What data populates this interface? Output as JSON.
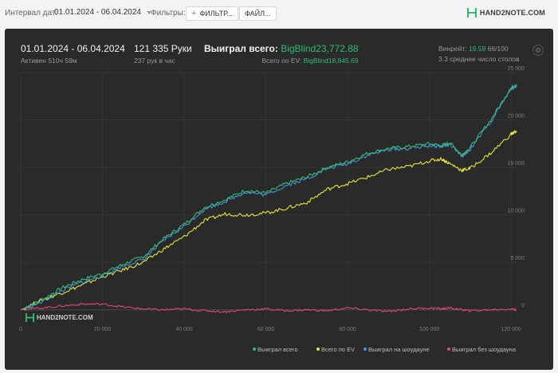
{
  "toolbar": {
    "date_label": "Интервал дат:",
    "date_value": "01.01.2024 - 06.04.2024",
    "filters_label": "Фильтры:",
    "filter_button": "ФИЛЬТР...",
    "file_button": "ФАЙЛ...",
    "logo_text": "HAND2NOTE.COM"
  },
  "stats": {
    "date_range": "01.01.2024 - 06.04.2024",
    "active": "Активен 510ч 59м",
    "hands": "121 335 Руки",
    "hands_per_hour": "237 рук в час",
    "won_label": "Выиграл всего:",
    "won_value": "BigBlind23,772.88",
    "ev_label": "Всего по EV:",
    "ev_value": "BigBlind18,845.69",
    "winrate_label": "Винрейт:",
    "winrate_value": "19.59",
    "winrate_suffix": "66/100",
    "tables": "3.3 среднее число столов"
  },
  "watermark": "HAND2NOTE.COM",
  "colors": {
    "won": "#2fbd73",
    "ev": "#e3e73c",
    "showdown": "#4a8fd9",
    "nonshowdown": "#e0467c",
    "accent": "#2fbd73"
  },
  "chart_data": {
    "type": "line",
    "xlabel": "",
    "ylabel": "",
    "xlim": [
      0,
      121335
    ],
    "ylim": [
      -1200,
      25000
    ],
    "x_ticks": [
      "0",
      "20 000",
      "40 000",
      "60 000",
      "80 000",
      "100 000",
      "120 000"
    ],
    "x_tick_values": [
      0,
      20000,
      40000,
      60000,
      80000,
      100000,
      120000
    ],
    "y_ticks": [
      "0",
      "5 000",
      "10 000",
      "15 000",
      "20 000",
      "25 000"
    ],
    "y_tick_values": [
      0,
      5000,
      10000,
      15000,
      20000,
      25000
    ],
    "grid": true,
    "legend_position": "bottom-right",
    "x": [
      0,
      5000,
      10000,
      15000,
      20000,
      25000,
      30000,
      35000,
      40000,
      45000,
      50000,
      55000,
      60000,
      65000,
      70000,
      75000,
      80000,
      85000,
      90000,
      95000,
      100000,
      103000,
      105000,
      108000,
      110000,
      115000,
      120000,
      121335
    ],
    "series": [
      {
        "name": "Выиграл всего",
        "values": [
          0,
          1000,
          2300,
          3200,
          3800,
          4800,
          5600,
          7500,
          9000,
          10800,
          11600,
          12600,
          12300,
          13300,
          14000,
          15000,
          15600,
          16500,
          17000,
          17200,
          17500,
          17300,
          17600,
          16300,
          17100,
          20000,
          23400,
          23773
        ]
      },
      {
        "name": "Всего по EV",
        "values": [
          0,
          1000,
          1800,
          2600,
          3500,
          4200,
          5000,
          6400,
          7700,
          9400,
          10100,
          10000,
          10200,
          10700,
          11300,
          12700,
          13300,
          14000,
          14800,
          15100,
          15700,
          15900,
          15400,
          14700,
          14900,
          16500,
          18500,
          18846
        ]
      },
      {
        "name": "Выиграл на шоудауне",
        "values": [
          0,
          800,
          2000,
          2900,
          3600,
          4600,
          5300,
          7300,
          8800,
          10600,
          11400,
          12400,
          12100,
          13100,
          13800,
          14900,
          15400,
          16300,
          16900,
          17000,
          17300,
          17200,
          17400,
          16200,
          16900,
          19800,
          23300,
          23600
        ]
      },
      {
        "name": "Выиграл без шоудауна",
        "values": [
          0,
          200,
          400,
          600,
          600,
          300,
          100,
          0,
          100,
          -100,
          -200,
          0,
          100,
          -100,
          0,
          -100,
          200,
          0,
          -200,
          100,
          200,
          100,
          200,
          0,
          -100,
          0,
          100,
          0
        ]
      }
    ]
  }
}
